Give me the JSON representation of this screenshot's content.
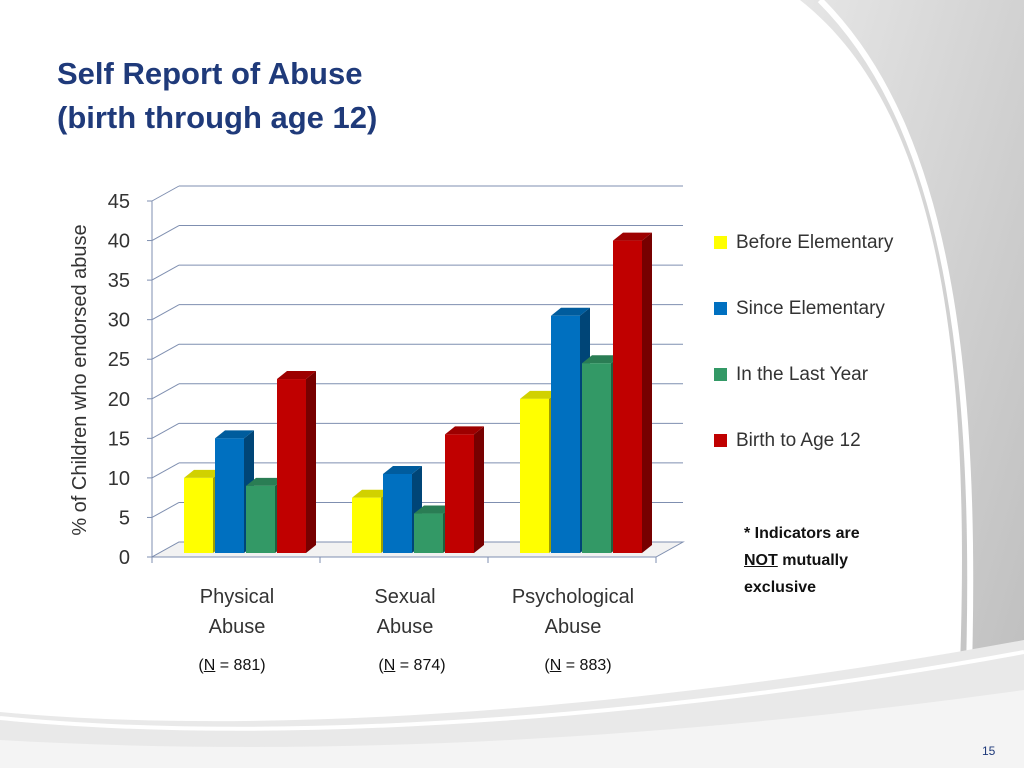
{
  "slide": {
    "title_line1": "Self Report of Abuse",
    "title_line2": "(birth through age 12)",
    "note_part1": "* Indicators are",
    "note_part2": "NOT",
    "note_part3": "mutually exclusive",
    "page_number": "15",
    "n_labels": [
      {
        "open": "(",
        "n": "N",
        "rest": " = 881)"
      },
      {
        "open": "(",
        "n": "N",
        "rest": " = 874)"
      },
      {
        "open": "(",
        "n": "N",
        "rest": " = 883)"
      }
    ]
  },
  "chart_data": {
    "type": "bar",
    "ylabel": "% of Children who endorsed abuse",
    "xlabel": "",
    "ylim": [
      0,
      45
    ],
    "yticks": [
      0,
      5,
      10,
      15,
      20,
      25,
      30,
      35,
      40,
      45
    ],
    "grid": true,
    "legend": "right",
    "categories": [
      [
        "Physical",
        "Abuse"
      ],
      [
        "Sexual",
        "Abuse"
      ],
      [
        "Psychological",
        "Abuse"
      ]
    ],
    "series": [
      {
        "name": "Before Elementary",
        "color": "#ffff00",
        "values": [
          10.5,
          8,
          20.5
        ]
      },
      {
        "name": "Since Elementary",
        "color": "#0070c0",
        "values": [
          15.5,
          11,
          31
        ]
      },
      {
        "name": "In the Last Year",
        "color": "#339966",
        "values": [
          9.5,
          6,
          25
        ]
      },
      {
        "name": "Birth to Age 12",
        "color": "#c00000",
        "values": [
          23,
          16,
          40.5
        ]
      }
    ]
  }
}
